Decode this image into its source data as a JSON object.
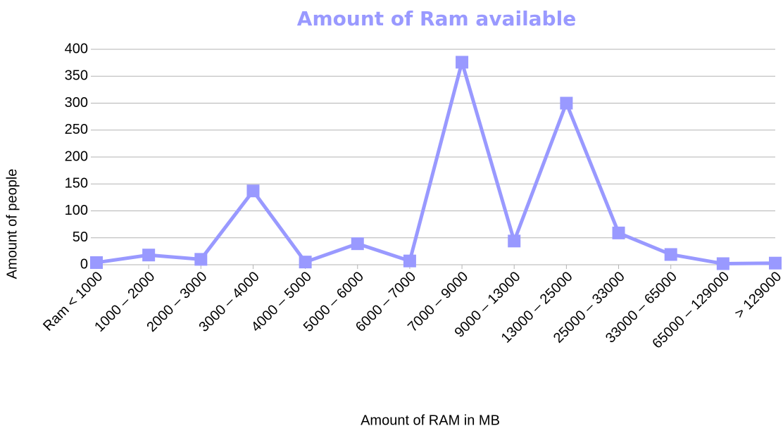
{
  "chart_data": {
    "type": "line",
    "title": "Amount of Ram available",
    "x_label": "Amount of RAM in MB",
    "y_label": "Amount of people",
    "categories": [
      "Ram < 1000",
      "1000 – 2000",
      "2000 – 3000",
      "3000 – 4000",
      "4000 – 5000",
      "5000 – 6000",
      "6000 – 7000",
      "7000 – 9000",
      "9000 – 13000",
      "13000 – 25000",
      "25000 – 33000",
      "33000 – 65000",
      "65000 – 129000",
      "> 129000"
    ],
    "series": [
      {
        "name": "Amount of people",
        "color": "#9999ff",
        "values": [
          4,
          18,
          10,
          137,
          5,
          39,
          7,
          376,
          44,
          300,
          59,
          19,
          2,
          3
        ]
      }
    ],
    "ylim": [
      0,
      400
    ],
    "yticks": [
      0,
      50,
      100,
      150,
      200,
      250,
      300,
      350,
      400
    ],
    "grid": true
  }
}
